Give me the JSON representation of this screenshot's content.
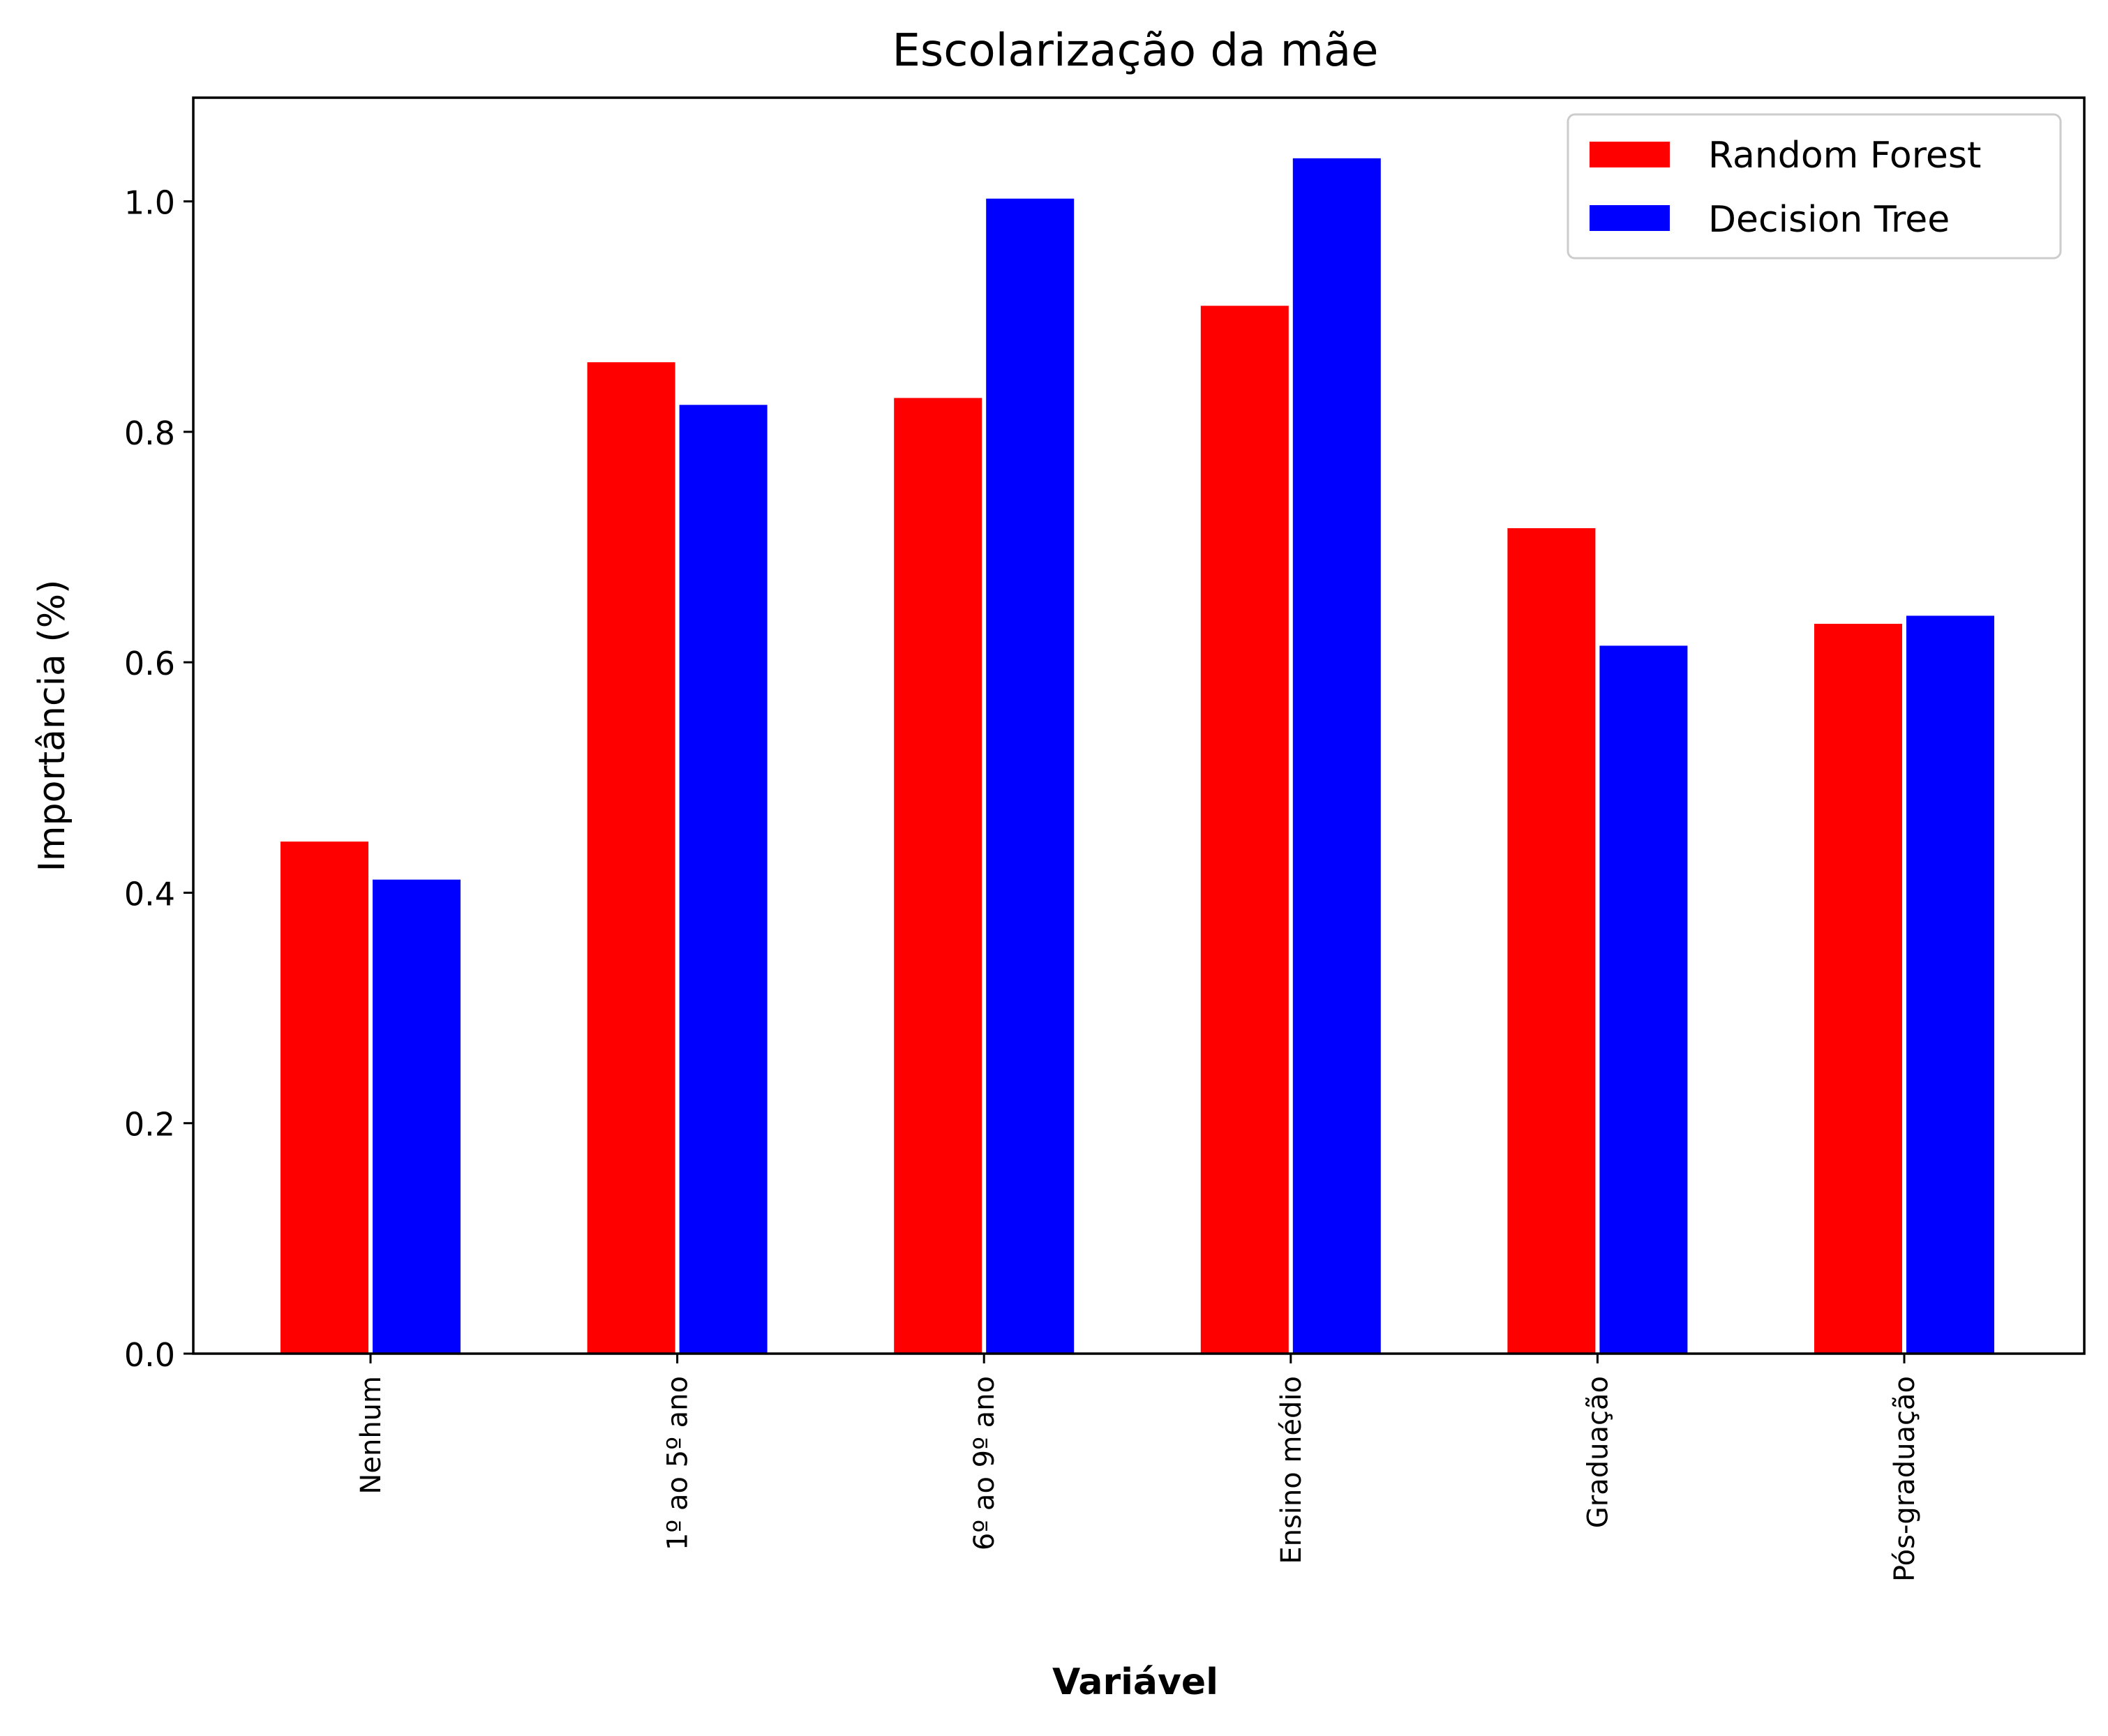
{
  "chart_data": {
    "type": "bar",
    "title": "Escolarização da mãe",
    "xlabel": "Variável",
    "ylabel": "Importância (%)",
    "categories": [
      "Nenhum",
      "1º ao 5º ano",
      "6º ao 9º ano",
      "Ensino médio",
      "Graduação",
      "Pós-graduação"
    ],
    "series": [
      {
        "name": "Random Forest",
        "color": "#ff0000",
        "values": [
          0.445,
          0.861,
          0.83,
          0.91,
          0.717,
          0.634
        ]
      },
      {
        "name": "Decision Tree",
        "color": "#0000ff",
        "values": [
          0.412,
          0.824,
          1.003,
          1.038,
          0.615,
          0.641
        ]
      }
    ],
    "ylim": [
      0,
      1.09
    ],
    "yticks": [
      0.0,
      0.2,
      0.4,
      0.6,
      0.8,
      1.0
    ],
    "ytick_labels": [
      "0.0",
      "0.2",
      "0.4",
      "0.6",
      "0.8",
      "1.0"
    ],
    "grid": false,
    "legend_position": "top-right"
  }
}
